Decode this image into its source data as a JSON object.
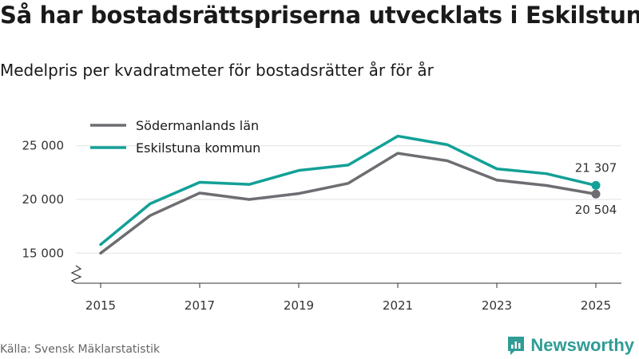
{
  "title": "Så har bostadsrättspriserna utvecklats i Eskilstuna",
  "subtitle": "Medelpris per kvadratmeter för bostadsrätter år för år",
  "source": "Källa: Svensk Mäklarstatistik",
  "brand": {
    "name": "Newsworthy",
    "icon": "newsworthy-logo-icon",
    "color": "#2f9c95"
  },
  "chart_data": {
    "type": "line",
    "title": "Så har bostadsrättspriserna utvecklats i Eskilstuna",
    "subtitle": "Medelpris per kvadratmeter för bostadsrätter år för år",
    "xlabel": "",
    "ylabel": "",
    "x": [
      2015,
      2016,
      2017,
      2018,
      2019,
      2020,
      2021,
      2022,
      2023,
      2024,
      2025
    ],
    "xticks": [
      "2015",
      "2017",
      "2019",
      "2021",
      "2023",
      "2025"
    ],
    "yticks": [
      15000,
      20000,
      25000
    ],
    "ytick_labels": [
      "15 000",
      "20 000",
      "25 000"
    ],
    "ylim": [
      12200,
      27800
    ],
    "grid": "horizontal",
    "axis_break": true,
    "legend_position": "top-left",
    "series": [
      {
        "name": "Södermanlands län",
        "color": "#6d6d72",
        "values": [
          15000,
          18500,
          20600,
          20000,
          20550,
          21500,
          24300,
          23600,
          21800,
          21300,
          20504
        ],
        "end_label": "20 504"
      },
      {
        "name": "Eskilstuna kommun",
        "color": "#12a097",
        "values": [
          15800,
          19600,
          21600,
          21400,
          22700,
          23200,
          25900,
          25100,
          22850,
          22400,
          21307
        ],
        "end_label": "21 307"
      }
    ]
  }
}
